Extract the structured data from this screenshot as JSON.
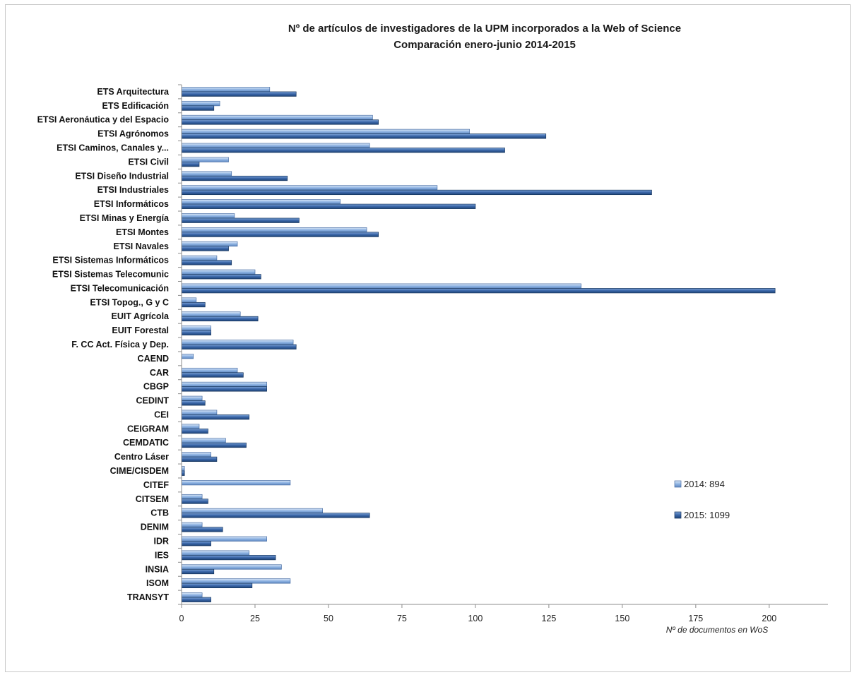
{
  "chart_data": {
    "type": "bar",
    "orientation": "horizontal",
    "title": "Nº de artículos de investigadores de la UPM incorporados a la Web of Science",
    "subtitle": "Comparación enero-junio 2014-2015",
    "xlabel": "Nº de documentos en WoS",
    "ylabel": "",
    "xlim": [
      0,
      220
    ],
    "xticks": [
      0,
      25,
      50,
      75,
      100,
      125,
      150,
      175,
      200
    ],
    "grid": false,
    "legend_position": "right",
    "categories": [
      "ETS Arquitectura",
      "ETS Edificación",
      "ETSI Aeronáutica y del Espacio",
      "ETSI Agrónomos",
      "ETSI Caminos, Canales y...",
      "ETSI Civil",
      "ETSI Diseño Industrial",
      "ETSI Industriales",
      "ETSI Informáticos",
      "ETSI Minas y Energía",
      "ETSI Montes",
      "ETSI Navales",
      "ETSI Sistemas Informáticos",
      "ETSI Sistemas Telecomunic",
      "ETSI Telecomunicación",
      "ETSI Topog., G y C",
      "EUIT Agrícola",
      "EUIT Forestal",
      "F. CC Act. Física y Dep.",
      "CAEND",
      "CAR",
      "CBGP",
      "CEDINT",
      "CEI",
      "CEIGRAM",
      "CEMDATIC",
      "Centro Láser",
      "CIME/CISDEM",
      "CITEF",
      "CITSEM",
      "CTB",
      "DENIM",
      "IDR",
      "IES",
      "INSIA",
      "ISOM",
      "TRANSYT"
    ],
    "series": [
      {
        "name": "2014: 894",
        "color": "#8fb4e3",
        "values": [
          30,
          13,
          65,
          98,
          64,
          16,
          17,
          87,
          54,
          18,
          63,
          19,
          12,
          25,
          136,
          5,
          20,
          10,
          38,
          4,
          19,
          29,
          7,
          12,
          6,
          15,
          10,
          1,
          37,
          7,
          48,
          7,
          29,
          23,
          34,
          37,
          7
        ]
      },
      {
        "name": "2015: 1099",
        "color": "#2f5d9e",
        "values": [
          39,
          11,
          67,
          124,
          110,
          6,
          36,
          160,
          100,
          40,
          67,
          16,
          17,
          27,
          202,
          8,
          26,
          10,
          39,
          0,
          21,
          29,
          8,
          23,
          9,
          22,
          12,
          1,
          0,
          9,
          64,
          14,
          10,
          32,
          11,
          24,
          10
        ]
      }
    ]
  }
}
